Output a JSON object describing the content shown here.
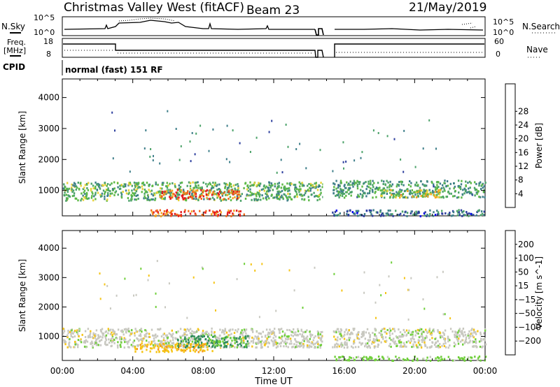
{
  "header": {
    "station": "Christmas Valley West (fitACF)",
    "beam": "Beam 23",
    "date": "21/May/2019"
  },
  "labels": {
    "nsky": "N.Sky",
    "nsearch": "N.Search",
    "freq_line1": "Freq.",
    "freq_line2": "[MHz]",
    "nave": "Nave",
    "cpid": "CPID",
    "mode": "normal (fast) 151 RF",
    "noise_tick_top": "10^5",
    "noise_tick_bottom": "10^0",
    "noise_tick_top_right": "10^5",
    "noise_tick_bottom_right": "10^0",
    "freq_tick_top": "18",
    "freq_tick_bottom": "8",
    "nave_tick_top": "60",
    "nave_tick_bottom": "0",
    "xlabel": "Time UT"
  },
  "chart_data": [
    {
      "type": "heatmap",
      "name": "power",
      "ylabel": "Slant Range [km]",
      "xlabel": "Time UT",
      "xlim": [
        0,
        24
      ],
      "ylim": [
        180,
        4600
      ],
      "yticks": [
        1000,
        2000,
        3000,
        4000
      ],
      "xticks": [
        "00:00",
        "04:00",
        "08:00",
        "12:00",
        "16:00",
        "20:00",
        "00:00"
      ],
      "colorbar": {
        "label": "Power [dB]",
        "ticks": [
          4,
          8,
          12,
          16,
          20,
          24,
          28
        ],
        "range": [
          0,
          32
        ],
        "colors": [
          "#0000ee",
          "#2d3f9e",
          "#3f7f8a",
          "#4da36a",
          "#5cb845",
          "#e8d23a",
          "#f5a623",
          "#f26a1b",
          "#e41a1c"
        ]
      },
      "regions": [
        {
          "t0": 0.0,
          "t1": 14.8,
          "r0": 700,
          "r1": 1300,
          "level": 14
        },
        {
          "t0": 5.5,
          "t1": 10.0,
          "r0": 750,
          "r1": 1050,
          "level": 27
        },
        {
          "t0": 5.0,
          "t1": 10.5,
          "r0": 200,
          "r1": 400,
          "level": 28
        },
        {
          "t0": 15.3,
          "t1": 24.0,
          "r0": 800,
          "r1": 1350,
          "level": 12
        },
        {
          "t0": 18.0,
          "t1": 21.5,
          "r0": 800,
          "r1": 1050,
          "level": 20
        },
        {
          "t0": 15.3,
          "t1": 24.0,
          "r0": 200,
          "r1": 400,
          "level": 8
        }
      ]
    },
    {
      "type": "heatmap",
      "name": "velocity",
      "ylabel": "Slant Range [km]",
      "xlabel": "Time UT",
      "xlim": [
        0,
        24
      ],
      "ylim": [
        180,
        4600
      ],
      "yticks": [
        1000,
        2000,
        3000,
        4000
      ],
      "xticks": [
        "00:00",
        "04:00",
        "08:00",
        "12:00",
        "16:00",
        "20:00",
        "00:00"
      ],
      "colorbar": {
        "label": "Velocity [m s^-1]",
        "ticks": [
          "200",
          "100",
          "50",
          "15",
          "−15",
          "−50",
          "−100",
          "−200"
        ],
        "colors": [
          "#1a30c0",
          "#2f5aa8",
          "#2f8c5a",
          "#6fcf3a",
          "#c8c8c0",
          "#f5c518",
          "#f59a1a",
          "#f06a1a",
          "#e41a1c"
        ]
      },
      "regions": [
        {
          "t0": 0.0,
          "t1": 14.8,
          "r0": 650,
          "r1": 1300,
          "level": 0
        },
        {
          "t0": 6.5,
          "t1": 10.5,
          "r0": 650,
          "r1": 1050,
          "level": 60
        },
        {
          "t0": 4.0,
          "t1": 8.5,
          "r0": 500,
          "r1": 800,
          "level": -40
        },
        {
          "t0": 15.3,
          "t1": 24.0,
          "r0": 650,
          "r1": 1300,
          "level": 0
        },
        {
          "t0": 15.3,
          "t1": 24.0,
          "r0": 200,
          "r1": 350,
          "level": 30
        }
      ]
    }
  ]
}
